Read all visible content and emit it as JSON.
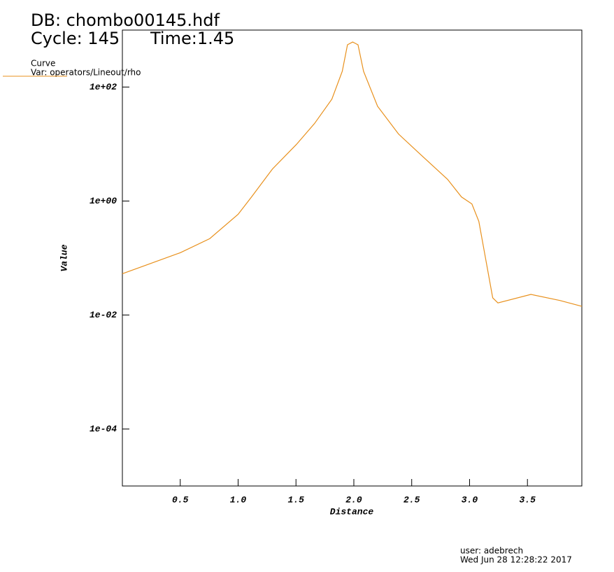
{
  "chart_data": {
    "type": "line",
    "title": "DB: chombo00145.hdf",
    "cycle": "Cycle: 145",
    "time": "Time:1.45",
    "legend_title": "Curve",
    "xlabel": "Distance",
    "ylabel": "Value",
    "user": "user: adebrech",
    "date": "Wed Jun 28 12:28:22 2017",
    "log_y": true,
    "x": [
      0,
      0.5,
      0.755,
      1.0,
      1.116,
      1.297,
      1.503,
      1.66,
      1.81,
      1.9,
      1.945,
      1.99,
      2.036,
      2.084,
      2.205,
      2.386,
      2.568,
      2.81,
      2.93,
      3.02,
      3.08,
      3.14,
      3.2,
      3.245,
      3.53,
      3.78,
      3.97
    ],
    "series": [
      {
        "name": "Var: operators/Lineout/rho",
        "color": "#e8901c",
        "values": [
          0.053,
          0.124,
          0.219,
          0.585,
          1.18,
          3.66,
          9.8,
          22.9,
          61.3,
          189,
          552,
          617,
          552,
          189,
          46,
          15,
          6.8,
          2.4,
          1.18,
          0.89,
          0.44,
          0.094,
          0.02,
          0.0163,
          0.023,
          0.018,
          0.0142
        ]
      }
    ],
    "xlim": [
      0,
      3.97
    ],
    "ylim": [
      1e-05,
      1000
    ],
    "xticks": [
      0.5,
      {
        "value": 1,
        "label": "1.0"
      },
      1.5,
      {
        "value": 2,
        "label": "2.0"
      },
      2.5,
      {
        "value": 3,
        "label": "3.0"
      },
      3.5
    ],
    "yticks": [
      {
        "value": 0.0001,
        "label": "1e-04"
      },
      {
        "value": 0.01,
        "label": "1e-02"
      },
      {
        "value": 1,
        "label": "1e+00"
      },
      {
        "value": 100,
        "label": "1e+02"
      }
    ]
  }
}
